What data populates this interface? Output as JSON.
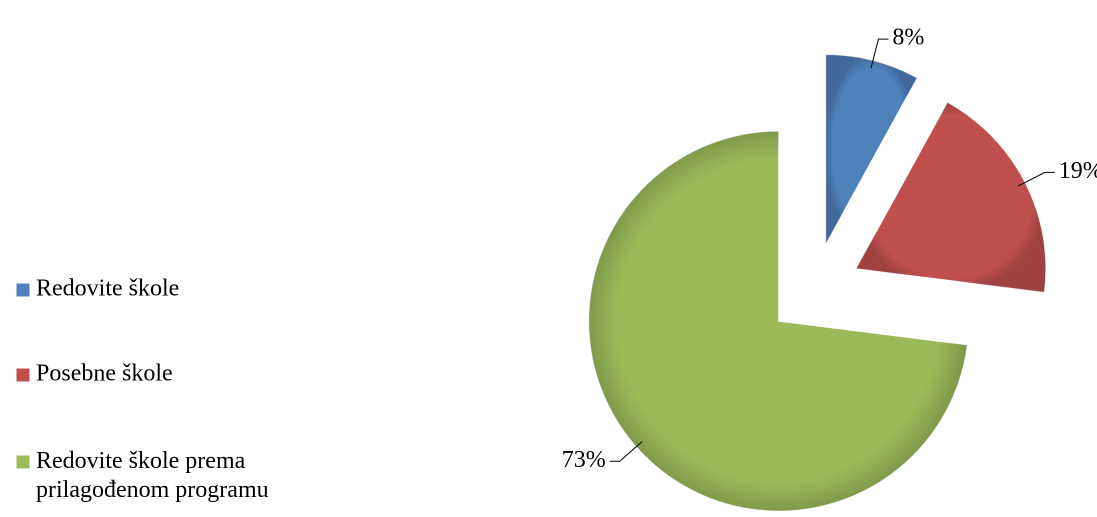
{
  "chart_data": {
    "type": "pie",
    "categories": [
      "Redovite škole",
      "Posebne škole",
      "Redovite škole prema prilagođenom programu"
    ],
    "values": [
      8,
      19,
      73
    ],
    "value_labels": [
      "8%",
      "19%",
      "73%"
    ],
    "colors": [
      "#4f81bd",
      "#c0504d",
      "#9bbb59"
    ],
    "legend": "left"
  }
}
